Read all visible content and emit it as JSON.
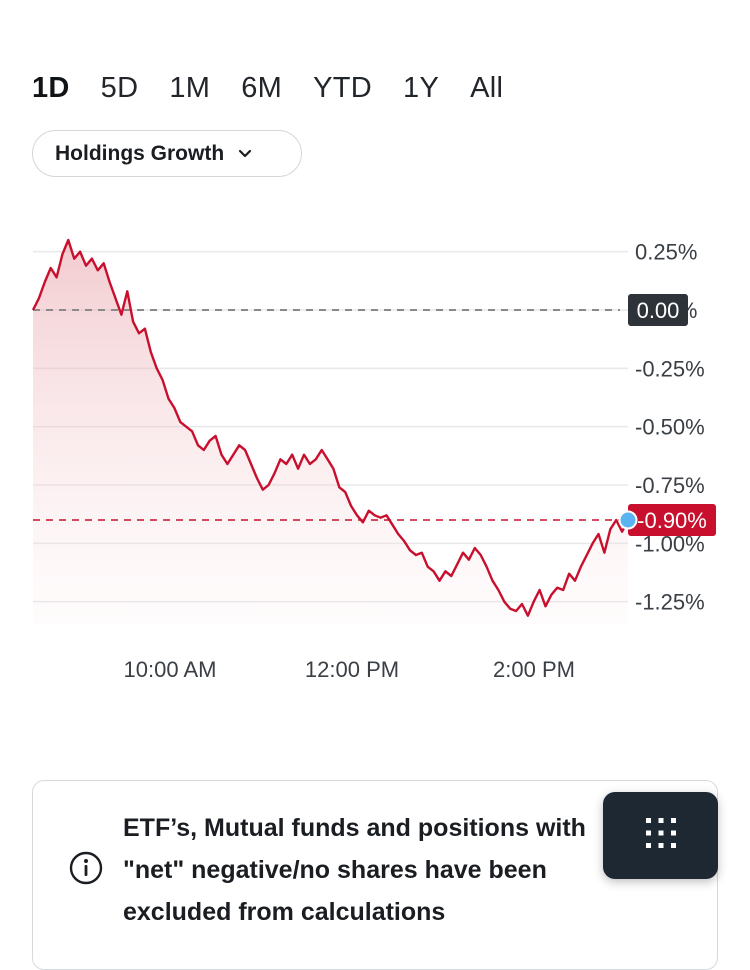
{
  "ranges": [
    {
      "label": "1D",
      "active": true
    },
    {
      "label": "5D",
      "active": false
    },
    {
      "label": "1M",
      "active": false
    },
    {
      "label": "6M",
      "active": false
    },
    {
      "label": "YTD",
      "active": false
    },
    {
      "label": "1Y",
      "active": false
    },
    {
      "label": "All",
      "active": false
    }
  ],
  "metric_selector": {
    "label": "Holdings Growth",
    "icon": "chevron-down-icon"
  },
  "chart_data": {
    "type": "area",
    "title": "",
    "xlabel": "",
    "ylabel": "",
    "x_ticks": [
      "10:00 AM",
      "12:00 PM",
      "2:00 PM"
    ],
    "y_ticks": [
      "0.25%",
      "0.00%",
      "-0.25%",
      "-0.50%",
      "-0.75%",
      "-1.00%",
      "-1.25%"
    ],
    "ylim": [
      -1.35,
      0.33
    ],
    "reference_line": {
      "label": "0.00",
      "value": 0.0,
      "color": "#888888"
    },
    "current_value": {
      "label": "-0.90%",
      "value": -0.9,
      "color": "#c8102e"
    },
    "series": [
      {
        "color": "#c8102e",
        "values": [
          0.0,
          0.05,
          0.12,
          0.18,
          0.14,
          0.24,
          0.3,
          0.22,
          0.25,
          0.19,
          0.22,
          0.17,
          0.2,
          0.12,
          0.05,
          -0.02,
          0.08,
          -0.05,
          -0.1,
          -0.08,
          -0.18,
          -0.25,
          -0.3,
          -0.38,
          -0.42,
          -0.48,
          -0.5,
          -0.52,
          -0.58,
          -0.6,
          -0.56,
          -0.54,
          -0.62,
          -0.66,
          -0.62,
          -0.58,
          -0.6,
          -0.66,
          -0.72,
          -0.77,
          -0.75,
          -0.7,
          -0.64,
          -0.66,
          -0.62,
          -0.68,
          -0.62,
          -0.66,
          -0.64,
          -0.6,
          -0.64,
          -0.68,
          -0.76,
          -0.78,
          -0.84,
          -0.88,
          -0.91,
          -0.86,
          -0.88,
          -0.89,
          -0.88,
          -0.92,
          -0.96,
          -0.99,
          -1.03,
          -1.05,
          -1.04,
          -1.1,
          -1.12,
          -1.16,
          -1.12,
          -1.14,
          -1.09,
          -1.04,
          -1.07,
          -1.02,
          -1.05,
          -1.1,
          -1.16,
          -1.2,
          -1.25,
          -1.28,
          -1.29,
          -1.26,
          -1.31,
          -1.25,
          -1.2,
          -1.27,
          -1.22,
          -1.19,
          -1.2,
          -1.13,
          -1.16,
          -1.1,
          -1.05,
          -1.0,
          -0.96,
          -1.04,
          -0.94,
          -0.9,
          -0.95,
          -0.9
        ]
      }
    ]
  },
  "info_card": {
    "icon": "info-icon",
    "lines": [
      "ETF’s, Mutual funds and positions with",
      "\"net\" negative/no shares have been",
      "excluded from calculations"
    ]
  },
  "grid_button": {
    "icon": "grid-dots-icon"
  }
}
